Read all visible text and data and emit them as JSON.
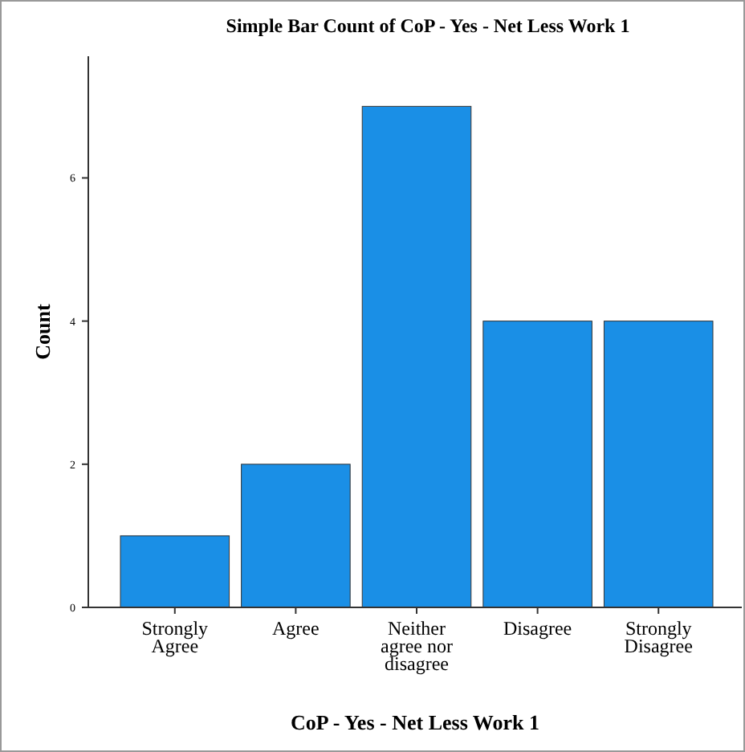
{
  "chart_data": {
    "type": "bar",
    "title": "Simple Bar Count of CoP - Yes - Net Less Work 1",
    "xlabel": "CoP - Yes - Net Less Work 1",
    "ylabel": "Count",
    "categories": [
      "Strongly Agree",
      "Agree",
      "Neither agree nor disagree",
      "Disagree",
      "Strongly Disagree"
    ],
    "values": [
      1,
      2,
      7,
      4,
      4
    ],
    "color": "#1a8fe6",
    "ylim": [
      0,
      7.7
    ],
    "yticks": [
      0,
      2,
      4,
      6
    ]
  }
}
